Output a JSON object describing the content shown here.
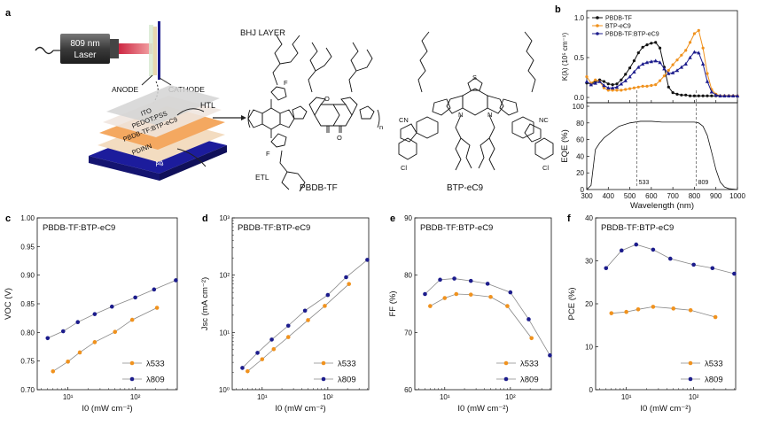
{
  "figure": {
    "panel_letters": [
      "a",
      "b",
      "c",
      "d",
      "e",
      "f"
    ],
    "schematic": {
      "laser_label": [
        "809 nm",
        "Laser"
      ],
      "anode": "ANODE",
      "cathode": "CATHODE",
      "bhj_layer": "BHJ LAYER",
      "htl": "HTL",
      "etl": "ETL",
      "layers": [
        "ITO",
        "PEDOT:PSS",
        "PBDB-TF:BTP-eC9",
        "PDINN",
        "Ag"
      ],
      "molecule_names": [
        "PBDB-TF",
        "BTP-eC9"
      ],
      "atom_labels": [
        "F",
        "S",
        "O",
        "N",
        "Cl",
        "CN",
        "NC",
        "n"
      ]
    },
    "colors": {
      "pbdb_tf": "#111111",
      "btp_ec9": "#f0921e",
      "blend": "#1c1c8c",
      "lambda533": "#f0921e",
      "lambda809": "#1c1c8c"
    }
  },
  "chart_data": [
    {
      "panel": "b-top",
      "type": "line",
      "ylabel": "K(λ) (10⁵ cm⁻¹)",
      "ylim": [
        0,
        1.0
      ],
      "xlim": [
        300,
        1000
      ],
      "yticks": [
        "0.0",
        "0.5",
        "1.0"
      ],
      "series": [
        {
          "name": "PBDB-TF",
          "x": [
            300,
            320,
            340,
            360,
            380,
            400,
            420,
            440,
            460,
            480,
            500,
            520,
            540,
            560,
            580,
            600,
            620,
            640,
            660,
            680,
            700,
            720,
            740,
            760,
            780,
            800,
            820,
            840,
            860,
            880,
            900,
            920,
            940,
            960,
            980,
            1000
          ],
          "values": [
            0.18,
            0.17,
            0.2,
            0.22,
            0.2,
            0.17,
            0.16,
            0.17,
            0.22,
            0.29,
            0.37,
            0.46,
            0.56,
            0.63,
            0.66,
            0.68,
            0.69,
            0.62,
            0.38,
            0.13,
            0.06,
            0.04,
            0.03,
            0.03,
            0.02,
            0.02,
            0.02,
            0.02,
            0.02,
            0.02,
            0.02,
            0.02,
            0.02,
            0.02,
            0.02,
            0.02
          ]
        },
        {
          "name": "BTP-eC9",
          "x": [
            300,
            320,
            340,
            360,
            380,
            400,
            420,
            440,
            460,
            480,
            500,
            520,
            540,
            560,
            580,
            600,
            620,
            640,
            660,
            680,
            700,
            720,
            740,
            760,
            780,
            800,
            820,
            840,
            860,
            880,
            900,
            920,
            940,
            960,
            980,
            1000
          ],
          "values": [
            0.26,
            0.18,
            0.22,
            0.2,
            0.12,
            0.09,
            0.09,
            0.09,
            0.09,
            0.1,
            0.11,
            0.12,
            0.13,
            0.14,
            0.14,
            0.15,
            0.16,
            0.21,
            0.27,
            0.34,
            0.41,
            0.47,
            0.53,
            0.59,
            0.69,
            0.8,
            0.84,
            0.62,
            0.3,
            0.1,
            0.04,
            0.02,
            0.02,
            0.02,
            0.02,
            0.02
          ]
        },
        {
          "name": "PBDB-TF:BTP-eC9",
          "x": [
            300,
            320,
            340,
            360,
            380,
            400,
            420,
            440,
            460,
            480,
            500,
            520,
            540,
            560,
            580,
            600,
            620,
            640,
            660,
            680,
            700,
            720,
            740,
            760,
            780,
            800,
            820,
            840,
            860,
            880,
            900,
            920,
            940,
            960,
            980,
            1000
          ],
          "values": [
            0.2,
            0.16,
            0.18,
            0.2,
            0.15,
            0.12,
            0.12,
            0.13,
            0.17,
            0.21,
            0.26,
            0.32,
            0.38,
            0.42,
            0.44,
            0.45,
            0.46,
            0.44,
            0.36,
            0.3,
            0.31,
            0.34,
            0.38,
            0.42,
            0.5,
            0.57,
            0.56,
            0.42,
            0.2,
            0.07,
            0.03,
            0.02,
            0.02,
            0.02,
            0.02,
            0.02
          ]
        }
      ],
      "legend_position": "top-left"
    },
    {
      "panel": "b-bottom",
      "type": "line",
      "xlabel": "Wavelength (nm)",
      "ylabel": "EQE (%)",
      "ylim": [
        0,
        100
      ],
      "xlim": [
        300,
        1000
      ],
      "xticks": [
        "300",
        "400",
        "500",
        "600",
        "700",
        "800",
        "900",
        "1000"
      ],
      "yticks": [
        "0",
        "20",
        "40",
        "60",
        "80",
        "100"
      ],
      "annotations": [
        "533",
        "809"
      ],
      "series": [
        {
          "name": "",
          "x": [
            300,
            320,
            340,
            360,
            380,
            400,
            420,
            450,
            500,
            550,
            600,
            650,
            700,
            750,
            800,
            820,
            840,
            860,
            880,
            900,
            920,
            940,
            960,
            1000
          ],
          "values": [
            0,
            5,
            48,
            56,
            62,
            66,
            70,
            76,
            80,
            82,
            82,
            81,
            81,
            81,
            81,
            80,
            76,
            65,
            45,
            24,
            9,
            3,
            1,
            0
          ]
        }
      ]
    },
    {
      "panel": "c",
      "type": "line",
      "annotation": "PBDB-TF:BTP-eC9",
      "xlabel": "I0 (mW cm⁻²)",
      "ylabel": "VOC (V)",
      "ylim": [
        0.7,
        1.0
      ],
      "yticks": [
        "0.70",
        "0.75",
        "0.80",
        "0.85",
        "0.90",
        "0.95",
        "1.00"
      ],
      "xticks": [
        "10¹",
        "10²"
      ],
      "log_x": true,
      "series": [
        {
          "name": "λ533",
          "x": [
            6,
            10,
            15,
            25,
            50,
            90,
            210
          ],
          "values": [
            0.732,
            0.749,
            0.765,
            0.783,
            0.801,
            0.822,
            0.843
          ]
        },
        {
          "name": "λ809",
          "x": [
            5,
            8.5,
            14,
            25,
            45,
            100,
            190,
            400
          ],
          "values": [
            0.79,
            0.802,
            0.818,
            0.832,
            0.845,
            0.861,
            0.875,
            0.891
          ]
        }
      ],
      "legend_position": "bottom-right"
    },
    {
      "panel": "d",
      "type": "line",
      "annotation": "PBDB-TF:BTP-eC9",
      "xlabel": "I0 (mW cm⁻²)",
      "ylabel": "Jsc (mA cm⁻²)",
      "log_y": true,
      "ylim": [
        1,
        1000
      ],
      "yticks": [
        "10⁰",
        "10¹",
        "10²",
        "10³"
      ],
      "xticks": [
        "10¹",
        "10²"
      ],
      "log_x": true,
      "series": [
        {
          "name": "λ533",
          "x": [
            6,
            10,
            15,
            25,
            50,
            90,
            210
          ],
          "values": [
            2.1,
            3.4,
            5.1,
            8.3,
            16.4,
            29,
            70
          ]
        },
        {
          "name": "λ809",
          "x": [
            5,
            8.5,
            14,
            25,
            45,
            100,
            190,
            400
          ],
          "values": [
            2.4,
            4.4,
            7.5,
            13.1,
            24,
            45,
            92,
            185
          ]
        }
      ],
      "legend_position": "bottom-right"
    },
    {
      "panel": "e",
      "type": "line",
      "annotation": "PBDB-TF:BTP-eC9",
      "xlabel": "I0 (mW cm⁻²)",
      "ylabel": "FF (%)",
      "ylim": [
        60,
        90
      ],
      "yticks": [
        "60",
        "70",
        "80",
        "90"
      ],
      "xticks": [
        "10¹",
        "10²"
      ],
      "log_x": true,
      "series": [
        {
          "name": "λ533",
          "x": [
            6,
            10,
            15,
            25,
            50,
            90,
            210
          ],
          "values": [
            74.6,
            76,
            76.7,
            76.6,
            76.2,
            74.6,
            69
          ]
        },
        {
          "name": "λ809",
          "x": [
            5,
            8.5,
            14,
            25,
            45,
            100,
            190,
            400
          ],
          "values": [
            76.7,
            79.2,
            79.4,
            79,
            78.5,
            77,
            72.3,
            66
          ]
        }
      ],
      "legend_position": "bottom-right"
    },
    {
      "panel": "f",
      "type": "line",
      "annotation": "PBDB-TF:BTP-eC9",
      "xlabel": "I0 (mW cm⁻²)",
      "ylabel": "PCE (%)",
      "ylim": [
        0,
        40
      ],
      "yticks": [
        "0",
        "10",
        "20",
        "30",
        "40"
      ],
      "xticks": [
        "10¹",
        "10²"
      ],
      "log_x": true,
      "series": [
        {
          "name": "λ533",
          "x": [
            6,
            10,
            15,
            25,
            50,
            90,
            210
          ],
          "values": [
            17.8,
            18.1,
            18.7,
            19.3,
            18.9,
            18.5,
            16.9
          ]
        },
        {
          "name": "λ809",
          "x": [
            5,
            8.5,
            14,
            25,
            45,
            100,
            190,
            400
          ],
          "values": [
            28.3,
            32.4,
            33.8,
            32.6,
            30.5,
            29.1,
            28.3,
            27
          ]
        }
      ],
      "legend_position": "bottom-right"
    }
  ]
}
